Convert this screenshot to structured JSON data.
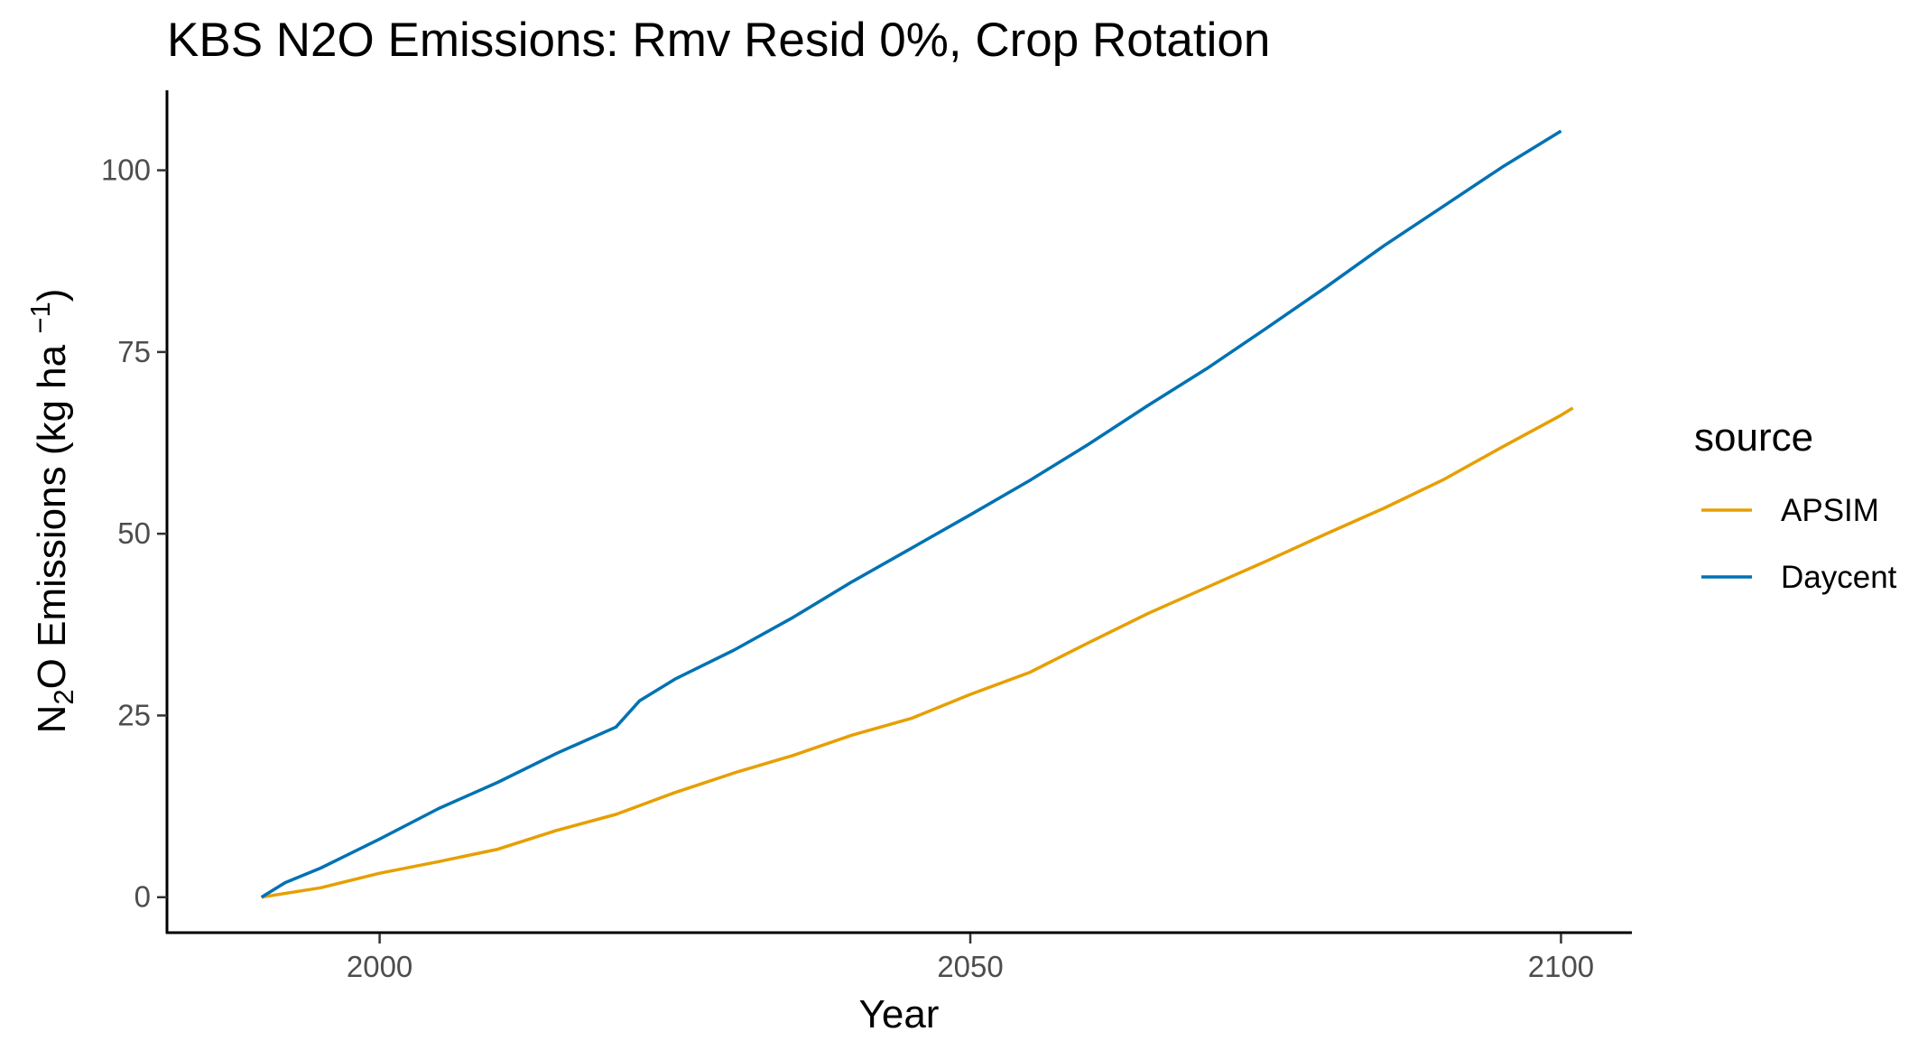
{
  "chart_data": {
    "type": "line",
    "title": "KBS N2O Emissions:  Rmv Resid 0%, Crop Rotation",
    "xlabel": "Year",
    "ylabel": {
      "prefix": "N",
      "subscript": "2",
      "middle": "O Emissions (kg ha ",
      "superscript": "−1",
      "suffix": ")"
    },
    "xlim": [
      1982,
      2106
    ],
    "ylim": [
      -5,
      111
    ],
    "x_ticks": [
      2000,
      2050,
      2100
    ],
    "x_tick_labels": [
      "2000",
      "2050",
      "2100"
    ],
    "y_ticks": [
      0,
      25,
      50,
      75,
      100
    ],
    "y_tick_labels": [
      "0",
      "25",
      "50",
      "75",
      "100"
    ],
    "grid": false,
    "legend": {
      "title": "source",
      "position": "right"
    },
    "series": [
      {
        "name": "APSIM",
        "color": "#E69F00",
        "x": [
          1990,
          1995,
          2000,
          2005,
          2010,
          2015,
          2020,
          2025,
          2030,
          2035,
          2040,
          2045,
          2050,
          2055,
          2060,
          2065,
          2070,
          2075,
          2080,
          2085,
          2090,
          2095,
          2100,
          2101
        ],
        "y": [
          0.0,
          1.3,
          3.3,
          4.9,
          6.6,
          9.2,
          11.4,
          14.4,
          17.1,
          19.5,
          22.3,
          24.6,
          27.9,
          30.9,
          35.0,
          39.0,
          42.6,
          46.2,
          49.9,
          53.5,
          57.4,
          61.9,
          66.3,
          67.3
        ]
      },
      {
        "name": "Daycent",
        "color": "#0072B2",
        "x": [
          1990,
          1992,
          1995,
          2000,
          2005,
          2010,
          2015,
          2020,
          2022,
          2025,
          2030,
          2035,
          2040,
          2045,
          2050,
          2055,
          2060,
          2065,
          2070,
          2075,
          2080,
          2085,
          2090,
          2095,
          2100
        ],
        "y": [
          0.0,
          2.0,
          4.0,
          8.0,
          12.2,
          15.8,
          19.8,
          23.4,
          27.0,
          30.0,
          34.0,
          38.5,
          43.4,
          48.0,
          52.6,
          57.3,
          62.3,
          67.6,
          72.7,
          78.2,
          83.8,
          89.6,
          95.0,
          100.4,
          105.4
        ]
      }
    ]
  }
}
